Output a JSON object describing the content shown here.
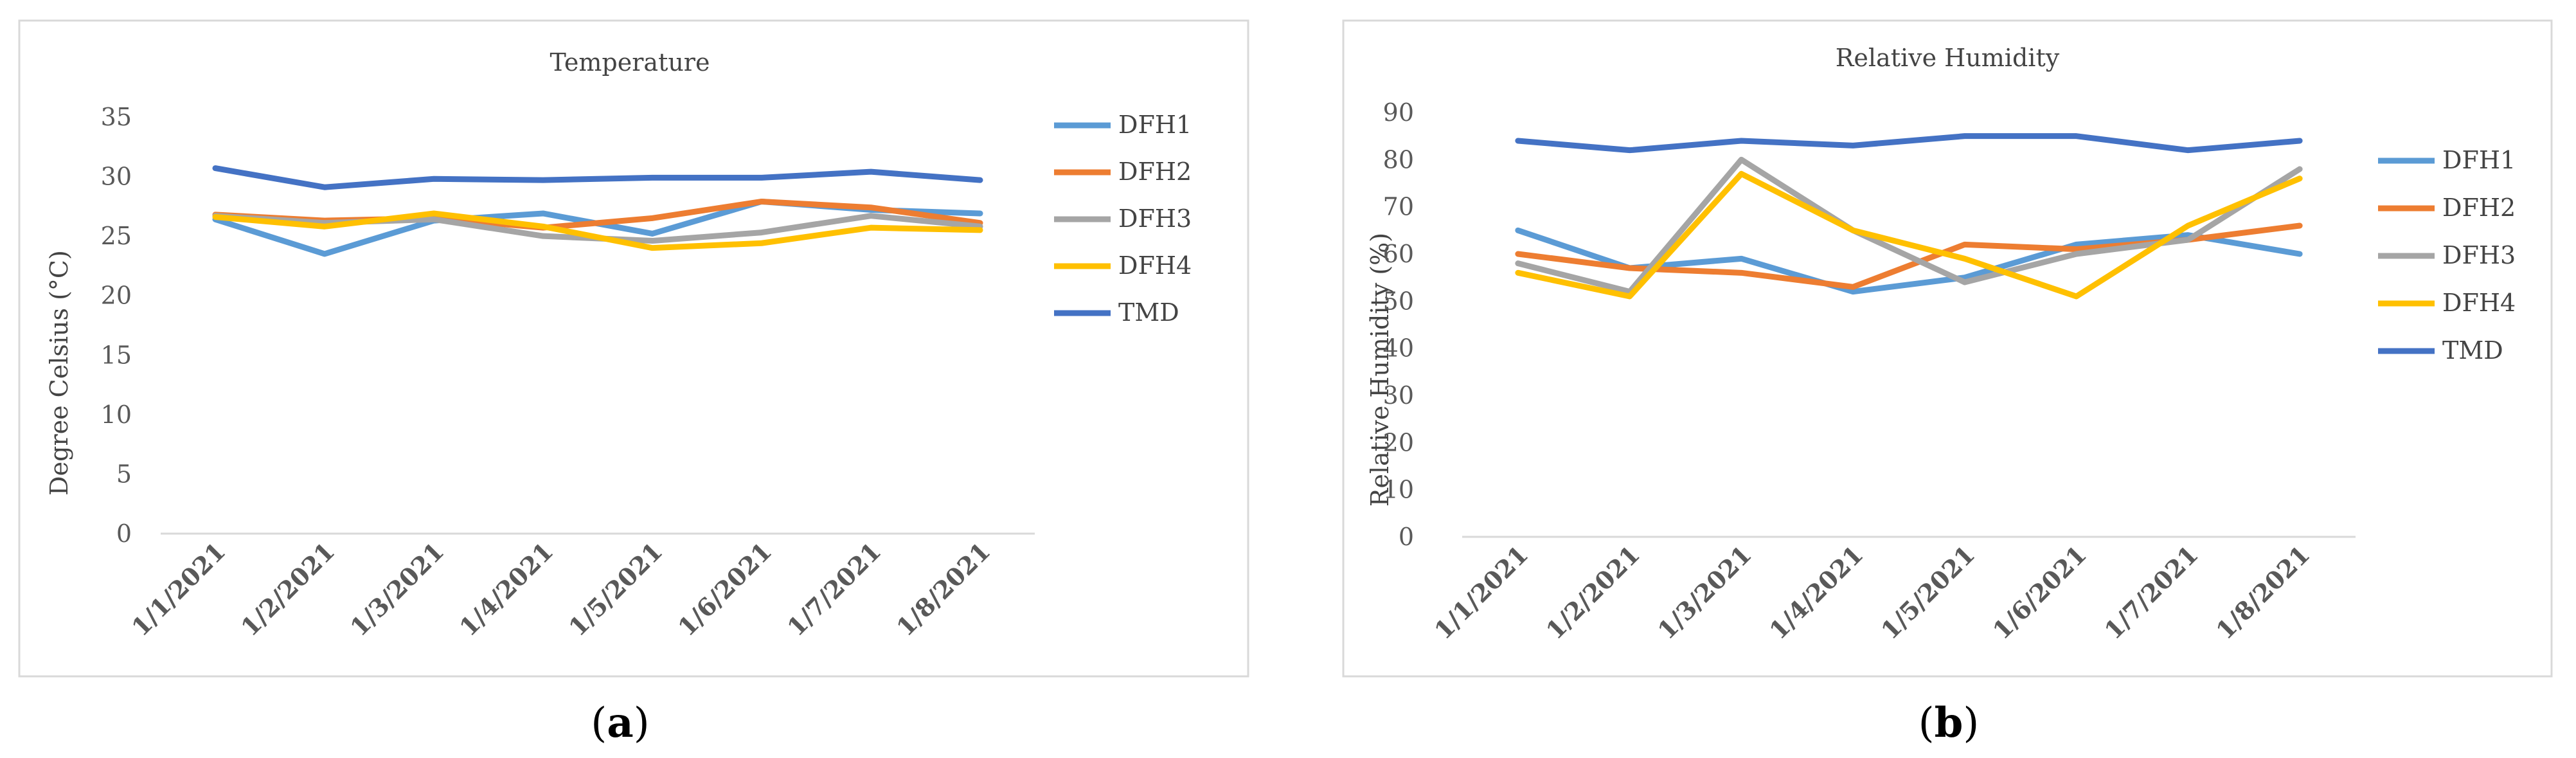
{
  "colors": {
    "DFH1": "#5B9BD5",
    "DFH2": "#ED7D31",
    "DFH3": "#A5A5A5",
    "DFH4": "#FFC000",
    "TMD": "#4472C4",
    "axis": "#d9d9d9",
    "frame": "#d9d9d9"
  },
  "chart_data": [
    {
      "type": "line",
      "title": "Temperature",
      "xlabel": "",
      "ylabel": "Degree Celsius (°C)",
      "panel_label": "a",
      "categories": [
        "1/1/2021",
        "1/2/2021",
        "1/3/2021",
        "1/4/2021",
        "1/5/2021",
        "1/6/2021",
        "1/7/2021",
        "1/8/2021"
      ],
      "ylim": [
        0,
        35
      ],
      "yticks": [
        0,
        5,
        10,
        15,
        20,
        25,
        30,
        35
      ],
      "grid": false,
      "legend": "right",
      "series": [
        {
          "name": "DFH1",
          "values": [
            26.4,
            23.5,
            26.3,
            26.9,
            25.2,
            27.9,
            27.2,
            26.9
          ]
        },
        {
          "name": "DFH2",
          "values": [
            26.8,
            26.3,
            26.5,
            25.7,
            26.5,
            27.9,
            27.4,
            26.1
          ]
        },
        {
          "name": "DFH3",
          "values": [
            26.7,
            26.1,
            26.4,
            25.0,
            24.6,
            25.3,
            26.7,
            25.8
          ]
        },
        {
          "name": "DFH4",
          "values": [
            26.6,
            25.8,
            26.9,
            25.8,
            24.0,
            24.4,
            25.7,
            25.5
          ]
        },
        {
          "name": "TMD",
          "values": [
            30.7,
            29.1,
            29.8,
            29.7,
            29.9,
            29.9,
            30.4,
            29.7
          ]
        }
      ]
    },
    {
      "type": "line",
      "title": "Relative Humidity",
      "xlabel": "",
      "ylabel": "Relative Humidity (%)",
      "panel_label": "b",
      "categories": [
        "1/1/2021",
        "1/2/2021",
        "1/3/2021",
        "1/4/2021",
        "1/5/2021",
        "1/6/2021",
        "1/7/2021",
        "1/8/2021"
      ],
      "ylim": [
        0,
        90
      ],
      "yticks": [
        0,
        10,
        20,
        30,
        40,
        50,
        60,
        70,
        80,
        90
      ],
      "grid": false,
      "legend": "right",
      "series": [
        {
          "name": "DFH1",
          "values": [
            65,
            57,
            59,
            52,
            55,
            62,
            64,
            60
          ]
        },
        {
          "name": "DFH2",
          "values": [
            60,
            57,
            56,
            53,
            62,
            61,
            63,
            66
          ]
        },
        {
          "name": "DFH3",
          "values": [
            58,
            52,
            80,
            65,
            54,
            60,
            63,
            78
          ]
        },
        {
          "name": "DFH4",
          "values": [
            56,
            51,
            77,
            65,
            59,
            51,
            66,
            76
          ]
        },
        {
          "name": "TMD",
          "values": [
            84,
            82,
            84,
            83,
            85,
            85,
            82,
            84
          ]
        }
      ]
    }
  ]
}
